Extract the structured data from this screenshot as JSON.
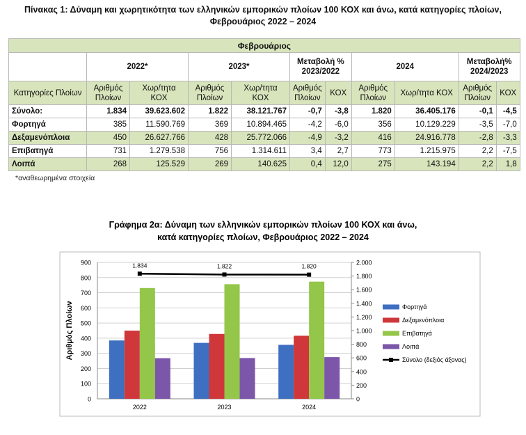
{
  "header": {
    "title": [
      "Πίνακας 1: Δύναμη και χωρητικότητα των ελληνικών εμπορικών πλοίων 100 ΚΟΧ και άνω, κατά κατηγορίες πλοίων,",
      "Φεβρουάριος 2022 – 2024"
    ]
  },
  "table": {
    "caption": "Φεβρουάριος",
    "group_headers": [
      "2022*",
      "2023*",
      "Μεταβολή % 2023/2022",
      "2024",
      "Μεταβολή% 2024/2023"
    ],
    "column_headers": [
      "Κατηγορίες Πλοίων",
      "Αριθμός Πλοίων",
      "Χωρ/τητα ΚΟΧ",
      "Αριθμός Πλοίων",
      "Χωρ/τητα ΚΟΧ",
      "Αριθμός Πλοίων",
      "ΚΟΧ",
      "Αριθμός Πλοίων",
      "Χωρ/τητα ΚΟΧ",
      "Αριθμός Πλοίων",
      "ΚΟΧ"
    ],
    "rows": [
      [
        "Σύνολο:",
        "1.834",
        "39.623.602",
        "1.822",
        "38.121.767",
        "-0,7",
        "-3,8",
        "1.820",
        "36.405.176",
        "-0,1",
        "-4,5"
      ],
      [
        "Φορτηγά",
        "385",
        "11.590.769",
        "369",
        "10.894.465",
        "-4,2",
        "-6,0",
        "356",
        "10.129.229",
        "-3,5",
        "-7,0"
      ],
      [
        "Δεξαμενόπλοια",
        "450",
        "26.627.766",
        "428",
        "25.772.066",
        "-4,9",
        "-3,2",
        "416",
        "24.916.778",
        "-2,8",
        "-3,3"
      ],
      [
        "Επιβατηγά",
        "731",
        "1.279.538",
        "756",
        "1.314.611",
        "3,4",
        "2,7",
        "773",
        "1.215.975",
        "2,2",
        "-7,5"
      ],
      [
        "Λοιπά",
        "268",
        "125.529",
        "269",
        "140.625",
        "0,4",
        "12,0",
        "275",
        "143.194",
        "2,2",
        "1,8"
      ]
    ],
    "footnote": "*αναθεωρημένα στοιχεία"
  },
  "chart_data": {
    "type": "bar",
    "title": [
      "Γράφημα 2α: Δύναμη των ελληνικών εμπορικών πλοίων 100 ΚΟΧ και άνω,",
      "κατά κατηγορίες πλοίων, Φεβρουάριος 2022 – 2024"
    ],
    "y_label": "Αριθμός Πλοίων",
    "categories": [
      "2022",
      "2023",
      "2024"
    ],
    "series": [
      {
        "name": "Φορτηγά",
        "color": "#3f6fc1",
        "values": [
          385,
          369,
          356
        ]
      },
      {
        "name": "Δεξαμενόπλοια",
        "color": "#d0373a",
        "values": [
          450,
          428,
          416
        ]
      },
      {
        "name": "Επιβατηγά",
        "color": "#93c649",
        "values": [
          731,
          756,
          773
        ]
      },
      {
        "name": "Λοιπά",
        "color": "#7b56a9",
        "values": [
          268,
          269,
          275
        ]
      },
      {
        "name": "Σύνολο (δεξιός άξονας)",
        "color": "#000000",
        "type": "line",
        "axis": "y2",
        "values": [
          1834,
          1822,
          1820
        ],
        "value_labels": [
          "1.834",
          "1.822",
          "1.820"
        ]
      }
    ],
    "ylim": [
      0,
      900
    ],
    "yticks": [
      0,
      100,
      200,
      300,
      400,
      500,
      600,
      700,
      800,
      900
    ],
    "y2lim": [
      0,
      2000
    ],
    "y2ticks": [
      0,
      200,
      400,
      600,
      800,
      {
        "value": 1000,
        "label": "1.000"
      },
      {
        "value": 1200,
        "label": "1.200"
      },
      {
        "value": 1400,
        "label": "1.400"
      },
      {
        "value": 1600,
        "label": "1.600"
      },
      {
        "value": 1800,
        "label": "1.800"
      },
      {
        "value": 2000,
        "label": "2.000"
      }
    ],
    "grid": true,
    "legend": "right"
  }
}
